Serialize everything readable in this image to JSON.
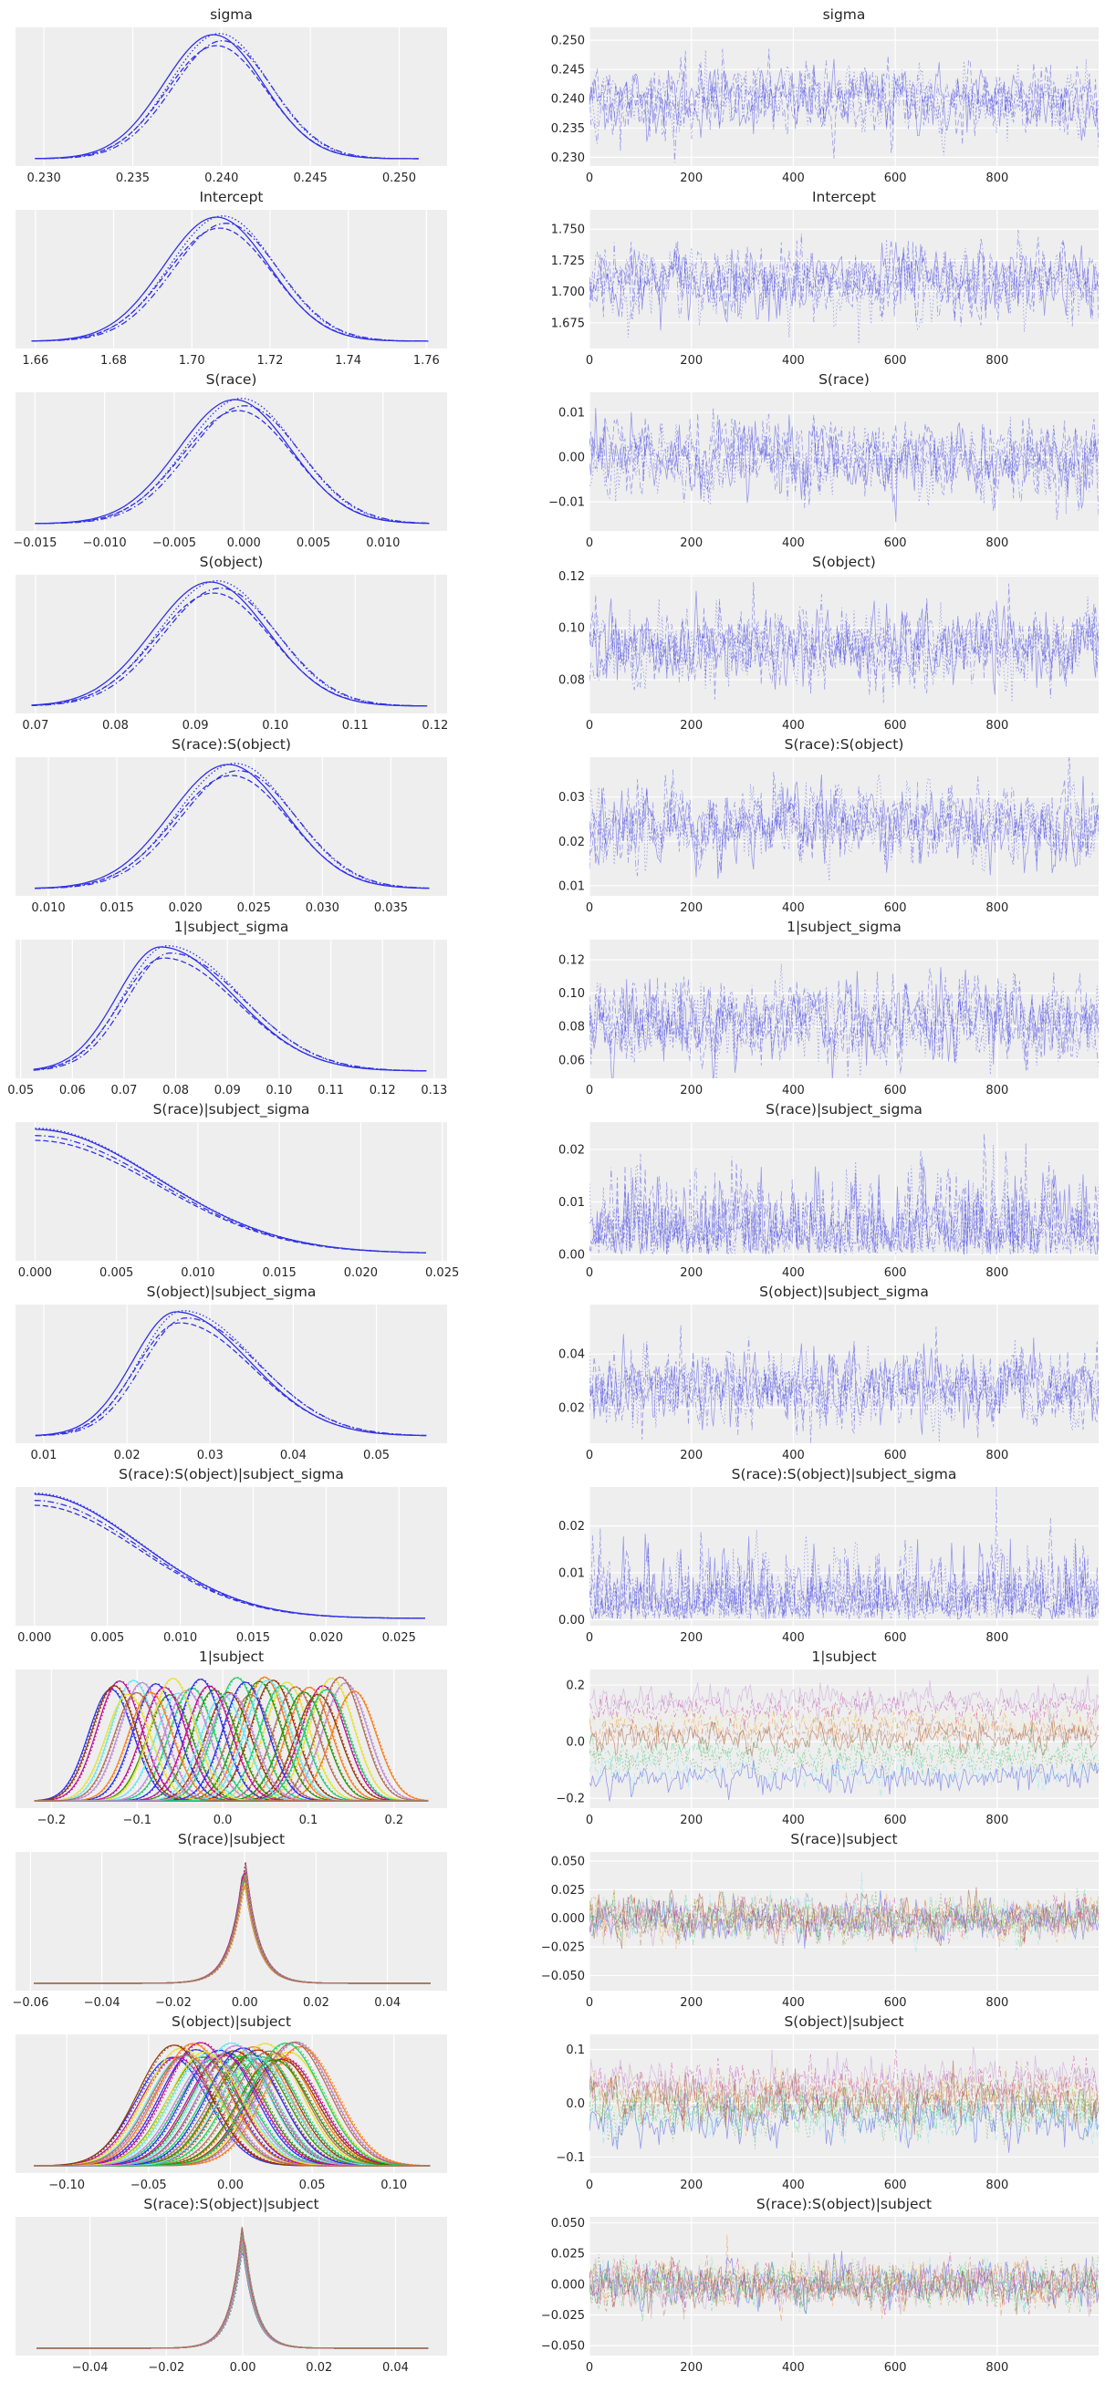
{
  "figure": {
    "type": "trace",
    "background": "#eeeeee",
    "grid_color": "#ffffff",
    "single_chain_color": "#3232e6",
    "palette": [
      "#2a2eec",
      "#fa7c17",
      "#328c06",
      "#c10c90",
      "#933708",
      "#65e5f3",
      "#e6e135",
      "#1ccd6a",
      "#bd8ad5",
      "#b16b57"
    ]
  },
  "chart_data": [
    {
      "title": "sigma",
      "kde": {
        "type": "line",
        "xticks": [
          "0.230",
          "0.235",
          "0.240",
          "0.245",
          "0.250"
        ],
        "xticks_val": [
          0.23,
          0.235,
          0.24,
          0.245,
          0.25
        ],
        "xlim": [
          0.2284,
          0.2527
        ],
        "support": [
          0.2295,
          0.2511
        ],
        "mean": 0.2398,
        "sd": 0.0028,
        "shape": "normal",
        "multi": false,
        "n_vars": 1
      },
      "trace": {
        "type": "line",
        "yticks": [
          "0.230",
          "0.235",
          "0.240",
          "0.245",
          "0.250"
        ],
        "yticks_val": [
          0.23,
          0.235,
          0.24,
          0.245,
          0.25
        ],
        "ylim": [
          0.2285,
          0.2522
        ],
        "xticks": [
          "0",
          "200",
          "400",
          "600",
          "800"
        ],
        "xticks_val": [
          0,
          200,
          400,
          600,
          800
        ],
        "xlim": [
          0,
          999
        ],
        "draws": 1000,
        "chains": 4,
        "center": 0.2398,
        "spread": 0.0028
      }
    },
    {
      "title": "Intercept",
      "kde": {
        "type": "line",
        "xticks": [
          "1.66",
          "1.68",
          "1.70",
          "1.72",
          "1.74",
          "1.76"
        ],
        "xticks_val": [
          1.66,
          1.68,
          1.7,
          1.72,
          1.74,
          1.76
        ],
        "xlim": [
          1.6549,
          1.7653
        ],
        "support": [
          1.659,
          1.7605
        ],
        "mean": 1.7075,
        "sd": 0.0135,
        "shape": "normal",
        "multi": false,
        "n_vars": 1
      },
      "trace": {
        "type": "line",
        "yticks": [
          "1.675",
          "1.700",
          "1.725",
          "1.750"
        ],
        "yticks_val": [
          1.675,
          1.7,
          1.725,
          1.75
        ],
        "ylim": [
          1.6545,
          1.7655
        ],
        "xticks": [
          "0",
          "200",
          "400",
          "600",
          "800"
        ],
        "xticks_val": [
          0,
          200,
          400,
          600,
          800
        ],
        "xlim": [
          0,
          999
        ],
        "draws": 1000,
        "chains": 4,
        "center": 1.7075,
        "spread": 0.0135
      }
    },
    {
      "title": "S(race)",
      "kde": {
        "type": "line",
        "xticks": [
          "−0.015",
          "−0.010",
          "−0.005",
          "0.000",
          "0.005",
          "0.010"
        ],
        "xticks_val": [
          -0.015,
          -0.01,
          -0.005,
          0.0,
          0.005,
          0.01
        ],
        "xlim": [
          -0.0164,
          0.0146
        ],
        "support": [
          -0.015,
          0.0133
        ],
        "mean": -0.0003,
        "sd": 0.004,
        "shape": "normal",
        "multi": false,
        "n_vars": 1
      },
      "trace": {
        "type": "line",
        "yticks": [
          "−0.01",
          "0.00",
          "0.01"
        ],
        "yticks_val": [
          -0.01,
          0.0,
          0.01
        ],
        "ylim": [
          -0.0165,
          0.0145
        ],
        "xticks": [
          "0",
          "200",
          "400",
          "600",
          "800"
        ],
        "xticks_val": [
          0,
          200,
          400,
          600,
          800
        ],
        "xlim": [
          0,
          999
        ],
        "draws": 1000,
        "chains": 4,
        "center": -0.0003,
        "spread": 0.004
      }
    },
    {
      "title": "S(object)",
      "kde": {
        "type": "line",
        "xticks": [
          "0.07",
          "0.08",
          "0.09",
          "0.10",
          "0.11",
          "0.12"
        ],
        "xticks_val": [
          0.07,
          0.08,
          0.09,
          0.1,
          0.11,
          0.12
        ],
        "xlim": [
          0.0675,
          0.1215
        ],
        "support": [
          0.0695,
          0.119
        ],
        "mean": 0.0925,
        "sd": 0.0072,
        "shape": "normal",
        "multi": false,
        "n_vars": 1
      },
      "trace": {
        "type": "line",
        "yticks": [
          "0.08",
          "0.10",
          "0.12"
        ],
        "yticks_val": [
          0.08,
          0.1,
          0.12
        ],
        "ylim": [
          0.067,
          0.1205
        ],
        "xticks": [
          "0",
          "200",
          "400",
          "600",
          "800"
        ],
        "xticks_val": [
          0,
          200,
          400,
          600,
          800
        ],
        "xlim": [
          0,
          999
        ],
        "draws": 1000,
        "chains": 4,
        "center": 0.0925,
        "spread": 0.0072
      }
    },
    {
      "title": "S(race):S(object)",
      "kde": {
        "type": "line",
        "xticks": [
          "0.010",
          "0.015",
          "0.020",
          "0.025",
          "0.030",
          "0.035"
        ],
        "xticks_val": [
          0.01,
          0.015,
          0.02,
          0.025,
          0.03,
          0.035
        ],
        "xlim": [
          0.0076,
          0.0391
        ],
        "support": [
          0.009,
          0.0378
        ],
        "mean": 0.0235,
        "sd": 0.0042,
        "shape": "normal",
        "multi": false,
        "n_vars": 1
      },
      "trace": {
        "type": "line",
        "yticks": [
          "0.01",
          "0.02",
          "0.03"
        ],
        "yticks_val": [
          0.01,
          0.02,
          0.03
        ],
        "ylim": [
          0.0077,
          0.039
        ],
        "xticks": [
          "0",
          "200",
          "400",
          "600",
          "800"
        ],
        "xticks_val": [
          0,
          200,
          400,
          600,
          800
        ],
        "xlim": [
          0,
          999
        ],
        "draws": 1000,
        "chains": 4,
        "center": 0.0235,
        "spread": 0.0042
      }
    },
    {
      "title": "1|subject_sigma",
      "kde": {
        "type": "line",
        "xticks": [
          "0.05",
          "0.06",
          "0.07",
          "0.08",
          "0.09",
          "0.10",
          "0.11",
          "0.12",
          "0.13"
        ],
        "xticks_val": [
          0.05,
          0.06,
          0.07,
          0.08,
          0.09,
          0.1,
          0.11,
          0.12,
          0.13
        ],
        "xlim": [
          0.049,
          0.1325
        ],
        "support": [
          0.0525,
          0.1285
        ],
        "mean": 0.078,
        "sd": 0.0105,
        "shape": "skew",
        "multi": false,
        "n_vars": 1
      },
      "trace": {
        "type": "line",
        "yticks": [
          "0.06",
          "0.08",
          "0.10",
          "0.12"
        ],
        "yticks_val": [
          0.06,
          0.08,
          0.1,
          0.12
        ],
        "ylim": [
          0.049,
          0.132
        ],
        "xticks": [
          "0",
          "200",
          "400",
          "600",
          "800"
        ],
        "xticks_val": [
          0,
          200,
          400,
          600,
          800
        ],
        "xlim": [
          0,
          999
        ],
        "draws": 1000,
        "chains": 4,
        "center": 0.083,
        "spread": 0.012
      }
    },
    {
      "title": "S(race)|subject_sigma",
      "kde": {
        "type": "line",
        "xticks": [
          "0.000",
          "0.005",
          "0.010",
          "0.015",
          "0.020",
          "0.025"
        ],
        "xticks_val": [
          0.0,
          0.005,
          0.01,
          0.015,
          0.02,
          0.025
        ],
        "xlim": [
          -0.0012,
          0.0253
        ],
        "support": [
          0.0,
          0.024
        ],
        "mean": 0.0,
        "sd": 0.0075,
        "shape": "half",
        "multi": false,
        "n_vars": 1
      },
      "trace": {
        "type": "line",
        "yticks": [
          "0.00",
          "0.01",
          "0.02"
        ],
        "yticks_val": [
          0.0,
          0.01,
          0.02
        ],
        "ylim": [
          -0.0012,
          0.0252
        ],
        "xticks": [
          "0",
          "200",
          "400",
          "600",
          "800"
        ],
        "xticks_val": [
          0,
          200,
          400,
          600,
          800
        ],
        "xlim": [
          0,
          999
        ],
        "draws": 1000,
        "chains": 4,
        "center": 0.0,
        "spread": 0.0075
      }
    },
    {
      "title": "S(object)|subject_sigma",
      "kde": {
        "type": "line",
        "xticks": [
          "0.01",
          "0.02",
          "0.03",
          "0.04",
          "0.05"
        ],
        "xticks_val": [
          0.01,
          0.02,
          0.03,
          0.04,
          0.05
        ],
        "xlim": [
          0.0066,
          0.0585
        ],
        "support": [
          0.009,
          0.056
        ],
        "mean": 0.0265,
        "sd": 0.0065,
        "shape": "skew",
        "multi": false,
        "n_vars": 1
      },
      "trace": {
        "type": "line",
        "yticks": [
          "0.02",
          "0.04"
        ],
        "yticks_val": [
          0.02,
          0.04
        ],
        "ylim": [
          0.0066,
          0.0585
        ],
        "xticks": [
          "0",
          "200",
          "400",
          "600",
          "800"
        ],
        "xticks_val": [
          0,
          200,
          400,
          600,
          800
        ],
        "xlim": [
          0,
          999
        ],
        "draws": 1000,
        "chains": 4,
        "center": 0.027,
        "spread": 0.0068
      }
    },
    {
      "title": "S(race):S(object)|subject_sigma",
      "kde": {
        "type": "line",
        "xticks": [
          "0.000",
          "0.005",
          "0.010",
          "0.015",
          "0.020",
          "0.025"
        ],
        "xticks_val": [
          0.0,
          0.005,
          0.01,
          0.015,
          0.02,
          0.025
        ],
        "xlim": [
          -0.0013,
          0.0283
        ],
        "support": [
          0.0,
          0.0268
        ],
        "mean": 0.0,
        "sd": 0.0072,
        "shape": "half",
        "multi": false,
        "n_vars": 1
      },
      "trace": {
        "type": "line",
        "yticks": [
          "0.00",
          "0.01",
          "0.02"
        ],
        "yticks_val": [
          0.0,
          0.01,
          0.02
        ],
        "ylim": [
          -0.0013,
          0.0283
        ],
        "xticks": [
          "0",
          "200",
          "400",
          "600",
          "800"
        ],
        "xticks_val": [
          0,
          200,
          400,
          600,
          800
        ],
        "xlim": [
          0,
          999
        ],
        "draws": 1000,
        "chains": 4,
        "center": 0.0,
        "spread": 0.0072
      }
    },
    {
      "title": "1|subject",
      "kde": {
        "type": "line",
        "xticks": [
          "−0.2",
          "−0.1",
          "0.0",
          "0.1",
          "0.2"
        ],
        "xticks_val": [
          -0.2,
          -0.1,
          0.0,
          0.1,
          0.2
        ],
        "xlim": [
          -0.242,
          0.262
        ],
        "support": [
          -0.22,
          0.24
        ],
        "mean": 0.0,
        "sd": 0.026,
        "shape": "multi",
        "multi": true,
        "n_vars": 40,
        "centers_range": [
          -0.13,
          0.16
        ]
      },
      "trace": {
        "type": "line",
        "yticks": [
          "−0.2",
          "0.0",
          "0.2"
        ],
        "yticks_val": [
          -0.2,
          0.0,
          0.2
        ],
        "ylim": [
          -0.235,
          0.255
        ],
        "xticks": [
          "0",
          "200",
          "400",
          "600",
          "800"
        ],
        "xticks_val": [
          0,
          200,
          400,
          600,
          800
        ],
        "xlim": [
          0,
          999
        ],
        "draws": 1000,
        "chains": 4,
        "center": 0.0,
        "spread": 0.026
      }
    },
    {
      "title": "S(race)|subject",
      "kde": {
        "type": "line",
        "xticks": [
          "−0.06",
          "−0.04",
          "−0.02",
          "0.00",
          "0.02",
          "0.04"
        ],
        "xticks_val": [
          -0.06,
          -0.04,
          -0.02,
          0.0,
          0.02,
          0.04
        ],
        "xlim": [
          -0.0642,
          0.0567
        ],
        "support": [
          -0.059,
          0.052
        ],
        "mean": 0.0,
        "sd": 0.006,
        "shape": "peaked",
        "multi": true,
        "n_vars": 40,
        "centers_range": [
          0,
          0
        ]
      },
      "trace": {
        "type": "line",
        "yticks": [
          "−0.050",
          "−0.025",
          "0.000",
          "0.025",
          "0.050"
        ],
        "yticks_val": [
          -0.05,
          -0.025,
          0.0,
          0.025,
          0.05
        ],
        "ylim": [
          -0.0632,
          0.058
        ],
        "xticks": [
          "0",
          "200",
          "400",
          "600",
          "800"
        ],
        "xticks_val": [
          0,
          200,
          400,
          600,
          800
        ],
        "xlim": [
          0,
          999
        ],
        "draws": 1000,
        "chains": 4,
        "center": 0.0,
        "spread": 0.009
      }
    },
    {
      "title": "S(object)|subject",
      "kde": {
        "type": "line",
        "xticks": [
          "−0.10",
          "−0.05",
          "0.00",
          "0.05",
          "0.10"
        ],
        "xticks_val": [
          -0.1,
          -0.05,
          0.0,
          0.05,
          0.1
        ],
        "xlim": [
          -0.1313,
          0.1325
        ],
        "support": [
          -0.12,
          0.122
        ],
        "mean": 0.0,
        "sd": 0.022,
        "shape": "multi",
        "multi": true,
        "n_vars": 40,
        "centers_range": [
          -0.035,
          0.045
        ]
      },
      "trace": {
        "type": "line",
        "yticks": [
          "−0.1",
          "0.0",
          "0.1"
        ],
        "yticks_val": [
          -0.1,
          0.0,
          0.1
        ],
        "ylim": [
          -0.13,
          0.128
        ],
        "xticks": [
          "0",
          "200",
          "400",
          "600",
          "800"
        ],
        "xticks_val": [
          0,
          200,
          400,
          600,
          800
        ],
        "xlim": [
          0,
          999
        ],
        "draws": 1000,
        "chains": 4,
        "center": 0.0,
        "spread": 0.022
      }
    },
    {
      "title": "S(race):S(object)|subject",
      "kde": {
        "type": "line",
        "xticks": [
          "−0.04",
          "−0.02",
          "0.00",
          "0.02",
          "0.04"
        ],
        "xticks_val": [
          -0.04,
          -0.02,
          0.0,
          0.02,
          0.04
        ],
        "xlim": [
          -0.0595,
          0.0535
        ],
        "support": [
          -0.054,
          0.0485
        ],
        "mean": 0.0,
        "sd": 0.005,
        "shape": "peaked",
        "multi": true,
        "n_vars": 40,
        "centers_range": [
          0,
          0
        ]
      },
      "trace": {
        "type": "line",
        "yticks": [
          "−0.050",
          "−0.025",
          "0.000",
          "0.025",
          "0.050"
        ],
        "yticks_val": [
          -0.05,
          -0.025,
          0.0,
          0.025,
          0.05
        ],
        "ylim": [
          -0.058,
          0.0548
        ],
        "xticks": [
          "0",
          "200",
          "400",
          "600",
          "800"
        ],
        "xticks_val": [
          0,
          200,
          400,
          600,
          800
        ],
        "xlim": [
          0,
          999
        ],
        "draws": 1000,
        "chains": 4,
        "center": 0.0,
        "spread": 0.009
      }
    }
  ]
}
